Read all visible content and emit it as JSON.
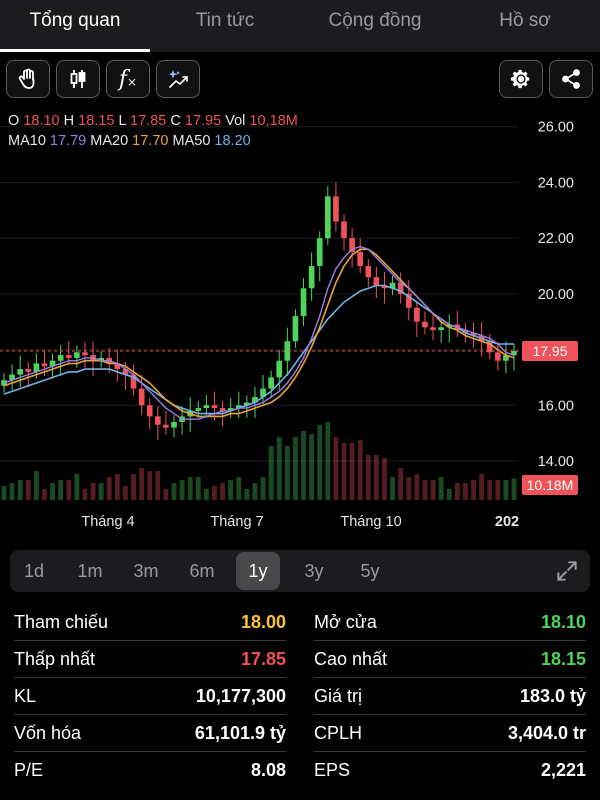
{
  "tabs": [
    {
      "label": "Tổng quan"
    },
    {
      "label": "Tin tức"
    },
    {
      "label": "Cộng đồng"
    },
    {
      "label": "Hồ sơ"
    }
  ],
  "toolbar": {
    "icons": [
      "hand-icon",
      "candlestick-icon",
      "function-icon",
      "ai-sparkle-icon",
      "gear-icon",
      "share-icon"
    ]
  },
  "ohlc": {
    "o_label": "O",
    "o": "18.10",
    "h_label": "H",
    "h": "18.15",
    "l_label": "L",
    "l": "17.85",
    "c_label": "C",
    "c": "17.95",
    "vol_label": "Vol",
    "vol": "10,18M",
    "ma10_label": "MA10",
    "ma10": "17.79",
    "ma20_label": "MA20",
    "ma20": "17.70",
    "ma50_label": "MA50",
    "ma50": "18.20"
  },
  "colors": {
    "up": "#4ed35d",
    "down": "#f0525a",
    "ma10": "#9a7fe6",
    "ma20": "#e8a43b",
    "ma50": "#6fb4e8",
    "reference": "#f7c531"
  },
  "chart_data": {
    "type": "candlestick",
    "y_ticks": [
      "26.00",
      "24.00",
      "22.00",
      "20.00",
      "18.00",
      "16.00",
      "14.00"
    ],
    "ylim": [
      12.6,
      26.6
    ],
    "x_labels": [
      "Tháng 4",
      "Tháng 7",
      "Tháng 10",
      "202"
    ],
    "last_price_label": "17.95",
    "last_price": 17.95,
    "volume_label": "10.18M",
    "close_series": [
      16.9,
      17.1,
      17.3,
      17.2,
      17.5,
      17.4,
      17.6,
      17.8,
      17.7,
      17.9,
      17.8,
      17.6,
      17.7,
      17.5,
      17.3,
      17.1,
      16.6,
      16.0,
      15.6,
      15.3,
      15.2,
      15.4,
      15.6,
      15.8,
      15.9,
      16.0,
      15.9,
      15.8,
      15.9,
      16.0,
      16.1,
      16.3,
      16.6,
      17.0,
      17.6,
      18.3,
      19.2,
      20.2,
      21.0,
      22.0,
      23.5,
      22.6,
      22.0,
      21.5,
      21.0,
      20.6,
      20.3,
      20.2,
      20.4,
      20.0,
      19.5,
      19.0,
      18.8,
      18.7,
      18.8,
      18.9,
      18.7,
      18.6,
      18.5,
      18.3,
      17.9,
      17.6,
      17.8,
      17.95
    ],
    "ma10_series": [
      16.8,
      16.9,
      17.0,
      17.1,
      17.2,
      17.3,
      17.4,
      17.5,
      17.6,
      17.6,
      17.7,
      17.7,
      17.6,
      17.6,
      17.5,
      17.3,
      17.1,
      16.8,
      16.5,
      16.2,
      15.9,
      15.7,
      15.5,
      15.5,
      15.5,
      15.6,
      15.7,
      15.8,
      15.8,
      15.9,
      15.9,
      16.0,
      16.1,
      16.3,
      16.5,
      16.8,
      17.2,
      17.7,
      18.4,
      19.2,
      20.2,
      20.9,
      21.3,
      21.6,
      21.7,
      21.6,
      21.3,
      21.0,
      20.7,
      20.4,
      20.2,
      19.9,
      19.6,
      19.3,
      19.1,
      18.9,
      18.8,
      18.7,
      18.6,
      18.5,
      18.4,
      18.2,
      17.9,
      17.79
    ],
    "ma20_series": [
      16.7,
      16.8,
      16.9,
      17.0,
      17.1,
      17.2,
      17.3,
      17.4,
      17.5,
      17.5,
      17.6,
      17.6,
      17.6,
      17.5,
      17.5,
      17.4,
      17.2,
      17.0,
      16.8,
      16.5,
      16.2,
      16.0,
      15.8,
      15.7,
      15.6,
      15.6,
      15.6,
      15.6,
      15.7,
      15.7,
      15.8,
      15.9,
      16.0,
      16.1,
      16.3,
      16.6,
      17.0,
      17.5,
      18.1,
      18.8,
      19.6,
      20.4,
      21.0,
      21.4,
      21.6,
      21.6,
      21.4,
      21.1,
      20.8,
      20.5,
      20.2,
      19.9,
      19.6,
      19.3,
      19.0,
      18.8,
      18.7,
      18.5,
      18.4,
      18.3,
      18.2,
      18.0,
      17.8,
      17.7
    ],
    "ma50_series": [
      16.4,
      16.5,
      16.6,
      16.7,
      16.8,
      16.9,
      17.0,
      17.1,
      17.2,
      17.2,
      17.3,
      17.3,
      17.3,
      17.3,
      17.2,
      17.1,
      17.0,
      16.8,
      16.6,
      16.4,
      16.2,
      16.0,
      15.9,
      15.8,
      15.7,
      15.7,
      15.7,
      15.7,
      15.8,
      15.9,
      16.0,
      16.1,
      16.3,
      16.5,
      16.8,
      17.1,
      17.5,
      17.9,
      18.3,
      18.7,
      19.1,
      19.4,
      19.7,
      19.9,
      20.1,
      20.2,
      20.3,
      20.3,
      20.2,
      20.1,
      19.9,
      19.7,
      19.5,
      19.3,
      19.1,
      18.9,
      18.8,
      18.6,
      18.5,
      18.4,
      18.3,
      18.2,
      18.2,
      18.2
    ]
  },
  "range": {
    "options": [
      "1d",
      "1m",
      "3m",
      "6m",
      "1y",
      "3y",
      "5y"
    ],
    "selected": "1y"
  },
  "stats": {
    "ref_label": "Tham chiếu",
    "ref": "18.00",
    "open_label": "Mở cửa",
    "open": "18.10",
    "low_label": "Thấp nhất",
    "low": "17.85",
    "high_label": "Cao nhất",
    "high": "18.15",
    "vol_label": "KL",
    "vol": "10,177,300",
    "value_label": "Giá trị",
    "value": "183.0 tỷ",
    "cap_label": "Vốn hóa",
    "cap": "61,101.9 tỷ",
    "shares_label": "CPLH",
    "shares": "3,404.0 tr",
    "pe_label": "P/E",
    "pe": "8.08",
    "eps_label": "EPS",
    "eps": "2,221"
  }
}
